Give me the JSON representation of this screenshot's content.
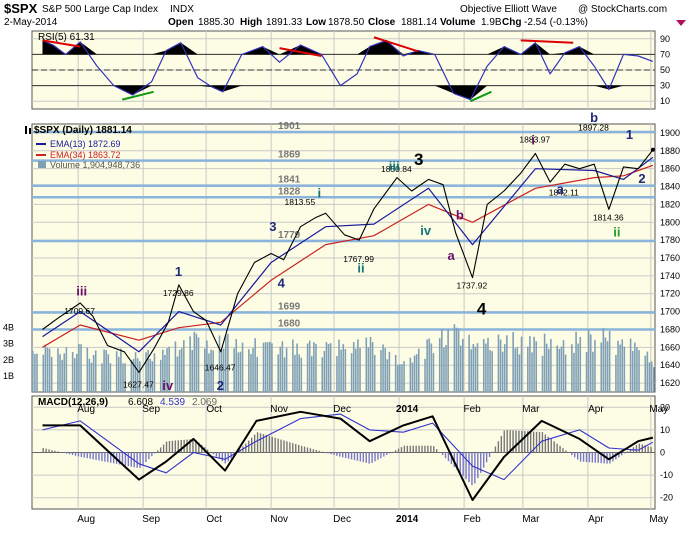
{
  "header": {
    "symbol": "$SPX",
    "description": "S&P 500 Large Cap Index",
    "exchange": "INDX",
    "date": "2-May-2014",
    "open_label": "Open",
    "open": "1885.30",
    "high_label": "High",
    "high": "1891.33",
    "low_label": "Low",
    "low": "1878.50",
    "close_label": "Close",
    "close": "1881.14",
    "volume_label": "Volume",
    "volume": "1.9B",
    "chg_label": "Chg",
    "chg": "-2.54 (-0.13%)",
    "watermark": "Objective Elliott Wave",
    "copyright": "@ StockCharts.com"
  },
  "colors": {
    "panel_bg": "#fdfde6",
    "grid": "#c8c8c8",
    "price_line": "#000000",
    "ema13": "#1a1a9c",
    "ema34": "#cc2222",
    "volume": "#7e9fb5",
    "rsi_line": "#3333bb",
    "rsi_fill": "#000000",
    "level_band": "#8ab4dc",
    "macd_line": "#000000",
    "signal_line": "#3333cc",
    "histogram": "#777777",
    "divergence_red": "#dd0000",
    "divergence_green": "#119911",
    "wave_purple": "#6b106b",
    "wave_navy": "#1f2a7a",
    "wave_teal": "#117777",
    "wave_green": "#229922"
  },
  "chart_data": [
    {
      "type": "line",
      "panel": "rsi",
      "title": "RSI(5) 61.31",
      "ylim": [
        0,
        100
      ],
      "ticks": [
        10,
        30,
        50,
        70,
        90
      ],
      "reference_lines": [
        30,
        50,
        70
      ],
      "series": [
        {
          "name": "RSI(5)",
          "x": [
            "2013-07-15",
            "2013-07-20",
            "2013-07-26",
            "2013-08-02",
            "2013-08-10",
            "2013-08-18",
            "2013-08-27",
            "2013-09-05",
            "2013-09-12",
            "2013-09-19",
            "2013-09-27",
            "2013-10-04",
            "2013-10-09",
            "2013-10-18",
            "2013-10-28",
            "2013-11-05",
            "2013-11-15",
            "2013-11-25",
            "2013-12-04",
            "2013-12-12",
            "2013-12-18",
            "2013-12-26",
            "2014-01-03",
            "2014-01-10",
            "2014-01-18",
            "2014-01-27",
            "2014-02-04",
            "2014-02-12",
            "2014-02-20",
            "2014-02-28",
            "2014-03-07",
            "2014-03-14",
            "2014-03-21",
            "2014-03-28",
            "2014-04-04",
            "2014-04-11",
            "2014-04-18",
            "2014-04-25",
            "2014-05-02"
          ],
          "values": [
            88,
            82,
            70,
            86,
            55,
            30,
            18,
            35,
            75,
            85,
            40,
            28,
            22,
            70,
            80,
            60,
            82,
            70,
            30,
            45,
            80,
            88,
            68,
            75,
            70,
            20,
            12,
            55,
            80,
            70,
            85,
            45,
            72,
            80,
            55,
            25,
            70,
            68,
            61
          ]
        }
      ]
    },
    {
      "type": "line",
      "panel": "price",
      "title": "$SPX (Daily) 1881.14",
      "ylim": [
        1610,
        1910
      ],
      "ticks": [
        1620,
        1640,
        1660,
        1680,
        1700,
        1720,
        1740,
        1760,
        1780,
        1800,
        1820,
        1840,
        1860,
        1880,
        1900
      ],
      "series": [
        {
          "name": "$SPX (Daily) 1881.14",
          "x": [
            "2013-07-15",
            "2013-07-22",
            "2013-08-02",
            "2013-08-08",
            "2013-08-15",
            "2013-08-23",
            "2013-08-30",
            "2013-09-06",
            "2013-09-13",
            "2013-09-18",
            "2013-09-25",
            "2013-10-01",
            "2013-10-08",
            "2013-10-16",
            "2013-10-24",
            "2013-11-01",
            "2013-11-07",
            "2013-11-15",
            "2013-11-22",
            "2013-11-27",
            "2013-12-06",
            "2013-12-13",
            "2013-12-20",
            "2013-12-31",
            "2014-01-07",
            "2014-01-15",
            "2014-01-22",
            "2014-01-28",
            "2014-02-05",
            "2014-02-12",
            "2014-02-20",
            "2014-02-28",
            "2014-03-07",
            "2014-03-14",
            "2014-03-21",
            "2014-03-28",
            "2014-04-04",
            "2014-04-11",
            "2014-04-18",
            "2014-04-25",
            "2014-05-02"
          ],
          "values": [
            1680,
            1692,
            1709.67,
            1695,
            1662,
            1655,
            1632,
            1658,
            1688,
            1729.86,
            1700,
            1690,
            1655,
            1720,
            1755,
            1765,
            1758,
            1795,
            1805,
            1810,
            1786,
            1780,
            1815,
            1850,
            1835,
            1848,
            1842,
            1788,
            1737.92,
            1820,
            1835,
            1855,
            1877,
            1845,
            1865,
            1860,
            1865,
            1814.36,
            1862,
            1860,
            1881.14
          ]
        },
        {
          "name": "EMA(13) 1872.69",
          "x": [
            "2013-07-15",
            "2013-08-02",
            "2013-08-30",
            "2013-09-18",
            "2013-10-08",
            "2013-11-01",
            "2013-11-27",
            "2013-12-20",
            "2014-01-15",
            "2014-02-05",
            "2014-03-07",
            "2014-04-04",
            "2014-04-18",
            "2014-05-02"
          ],
          "values": [
            1672,
            1700,
            1655,
            1700,
            1685,
            1755,
            1795,
            1798,
            1838,
            1775,
            1860,
            1858,
            1848,
            1872.69
          ]
        },
        {
          "name": "EMA(34) 1863.72",
          "x": [
            "2013-07-15",
            "2013-08-02",
            "2013-08-30",
            "2013-09-18",
            "2013-10-08",
            "2013-11-01",
            "2013-11-27",
            "2013-12-20",
            "2014-01-15",
            "2014-02-05",
            "2014-03-07",
            "2014-04-04",
            "2014-04-18",
            "2014-05-02"
          ],
          "values": [
            1660,
            1685,
            1668,
            1682,
            1688,
            1735,
            1775,
            1785,
            1820,
            1800,
            1838,
            1850,
            1852,
            1863.72
          ]
        }
      ],
      "horizontal_levels": [
        "1901",
        "1869",
        "1841",
        "1828",
        "1779",
        "1699",
        "1680"
      ],
      "annotations": [
        {
          "x": "2013-08-02",
          "y": 1709.67,
          "text": "1709.67"
        },
        {
          "x": "2013-09-18",
          "y": 1729.86,
          "text": "1729.86"
        },
        {
          "x": "2013-08-30",
          "y": 1627.47,
          "text": "1627.47"
        },
        {
          "x": "2013-10-08",
          "y": 1646.47,
          "text": "1646.47"
        },
        {
          "x": "2013-11-15",
          "y": 1813.55,
          "text": "1813.55"
        },
        {
          "x": "2013-12-13",
          "y": 1767.99,
          "text": "1767.99"
        },
        {
          "x": "2013-12-31",
          "y": 1850.84,
          "text": "1850.84"
        },
        {
          "x": "2014-02-05",
          "y": 1737.92,
          "text": "1737.92"
        },
        {
          "x": "2014-03-07",
          "y": 1883.97,
          "text": "1883.97"
        },
        {
          "x": "2014-03-21",
          "y": 1842.11,
          "text": "1842.11"
        },
        {
          "x": "2014-04-04",
          "y": 1897.28,
          "text": "1897.28"
        },
        {
          "x": "2014-04-11",
          "y": 1814.36,
          "text": "1814.36"
        }
      ],
      "wave_labels": [
        {
          "text": "iii",
          "x": "2013-08-02",
          "y": 1718,
          "color": "wave_purple"
        },
        {
          "text": "1",
          "x": "2013-09-18",
          "y": 1740,
          "color": "wave_navy"
        },
        {
          "text": "iv",
          "x": "2013-09-12",
          "y": 1612,
          "color": "wave_purple"
        },
        {
          "text": "2",
          "x": "2013-10-08",
          "y": 1612,
          "color": "wave_navy"
        },
        {
          "text": "3",
          "x": "2013-11-02",
          "y": 1790,
          "color": "wave_navy"
        },
        {
          "text": "4",
          "x": "2013-11-06",
          "y": 1727,
          "color": "wave_navy"
        },
        {
          "text": "i",
          "x": "2013-11-25",
          "y": 1828,
          "color": "wave_teal"
        },
        {
          "text": "ii",
          "x": "2013-12-14",
          "y": 1744,
          "color": "wave_teal"
        },
        {
          "text": "iii",
          "x": "2013-12-29",
          "y": 1858,
          "color": "wave_teal"
        },
        {
          "text": "3",
          "x": "2014-01-10",
          "y": 1864,
          "color": "wave_black"
        },
        {
          "text": "iv",
          "x": "2014-01-13",
          "y": 1786,
          "color": "wave_teal"
        },
        {
          "text": "a",
          "x": "2014-01-26",
          "y": 1758,
          "color": "wave_purple"
        },
        {
          "text": "b",
          "x": "2014-01-30",
          "y": 1803,
          "color": "wave_purple"
        },
        {
          "text": "4",
          "x": "2014-02-09",
          "y": 1697,
          "color": "wave_black"
        },
        {
          "text": "i",
          "x": "2014-03-07",
          "y": 1887,
          "color": "wave_purple"
        },
        {
          "text": "a",
          "x": "2014-03-19",
          "y": 1832,
          "color": "wave_navy"
        },
        {
          "text": "b",
          "x": "2014-04-04",
          "y": 1912,
          "color": "wave_navy"
        },
        {
          "text": "ii",
          "x": "2014-04-15",
          "y": 1784,
          "color": "wave_green"
        },
        {
          "text": "1",
          "x": "2014-04-21",
          "y": 1893,
          "color": "wave_navy"
        },
        {
          "text": "2",
          "x": "2014-04-27",
          "y": 1844,
          "color": "wave_navy"
        }
      ]
    },
    {
      "type": "bar",
      "panel": "volume",
      "title": "Volume 1,904,948,736",
      "ticks": [
        "1B",
        "2B",
        "3B",
        "4B"
      ],
      "x": [
        "2013-07-15",
        "2013-07-29",
        "2013-08-12",
        "2013-08-26",
        "2013-09-09",
        "2013-09-23",
        "2013-10-07",
        "2013-10-21",
        "2013-11-04",
        "2013-11-18",
        "2013-12-02",
        "2013-12-16",
        "2013-12-30",
        "2014-01-13",
        "2014-01-27",
        "2014-02-10",
        "2014-02-24",
        "2014-03-10",
        "2014-03-24",
        "2014-04-07",
        "2014-04-21",
        "2014-05-02"
      ],
      "values": [
        2.6,
        2.5,
        2.3,
        2.2,
        2.4,
        3.0,
        3.1,
        2.8,
        2.6,
        2.8,
        2.7,
        2.9,
        2.0,
        2.7,
        3.6,
        2.9,
        3.0,
        2.9,
        3.1,
        3.3,
        2.8,
        1.9
      ]
    },
    {
      "type": "line",
      "panel": "macd",
      "title": "MACD(12,26,9)",
      "values_label": [
        "6.608",
        "4.539",
        "2.069"
      ],
      "ylim": [
        -25,
        25
      ],
      "ticks": [
        -20,
        -10,
        0,
        10,
        20
      ],
      "series": [
        {
          "name": "MACD",
          "x": [
            "2013-07-15",
            "2013-08-02",
            "2013-08-30",
            "2013-09-12",
            "2013-09-25",
            "2013-10-10",
            "2013-10-25",
            "2013-11-15",
            "2013-12-04",
            "2013-12-18",
            "2014-01-03",
            "2014-01-17",
            "2014-02-05",
            "2014-02-20",
            "2014-03-10",
            "2014-03-28",
            "2014-04-11",
            "2014-04-25",
            "2014-05-02"
          ],
          "values": [
            12,
            12,
            -12,
            -4,
            6,
            -8,
            14,
            18,
            15,
            5,
            12,
            16,
            -21,
            -2,
            14,
            6,
            -3,
            5,
            6.608
          ]
        },
        {
          "name": "Signal",
          "x": [
            "2013-07-15",
            "2013-08-02",
            "2013-08-30",
            "2013-09-12",
            "2013-09-25",
            "2013-10-10",
            "2013-10-25",
            "2013-11-15",
            "2013-12-04",
            "2013-12-18",
            "2014-01-03",
            "2014-01-17",
            "2014-02-05",
            "2014-02-20",
            "2014-03-10",
            "2014-03-28",
            "2014-04-11",
            "2014-04-25",
            "2014-05-02"
          ],
          "values": [
            10,
            14,
            -5,
            -9,
            0,
            -3,
            5,
            15,
            17,
            10,
            9,
            13,
            -6,
            -12,
            5,
            10,
            2,
            1,
            4.539
          ]
        },
        {
          "name": "Histogram",
          "x": [
            "2013-07-15",
            "2013-08-02",
            "2013-08-30",
            "2013-09-12",
            "2013-09-25",
            "2013-10-10",
            "2013-10-25",
            "2013-11-15",
            "2013-12-04",
            "2013-12-18",
            "2014-01-03",
            "2014-01-17",
            "2014-02-05",
            "2014-02-20",
            "2014-03-10",
            "2014-03-28",
            "2014-04-11",
            "2014-04-25",
            "2014-05-02"
          ],
          "values": [
            2,
            -2,
            -7,
            5,
            6,
            -5,
            9,
            3,
            -2,
            -5,
            3,
            3,
            -15,
            10,
            9,
            -4,
            -5,
            4,
            2.069
          ]
        }
      ]
    }
  ],
  "x_axis": {
    "ticks": [
      {
        "date": "2013-08-01",
        "label": "Aug"
      },
      {
        "date": "2013-09-01",
        "label": "Sep"
      },
      {
        "date": "2013-10-01",
        "label": "Oct"
      },
      {
        "date": "2013-11-01",
        "label": "Nov"
      },
      {
        "date": "2013-12-01",
        "label": "Dec"
      },
      {
        "date": "2014-01-01",
        "label": "2014",
        "bold": true
      },
      {
        "date": "2014-02-01",
        "label": "Feb"
      },
      {
        "date": "2014-03-01",
        "label": "Mar"
      },
      {
        "date": "2014-04-01",
        "label": "Apr"
      },
      {
        "date": "2014-05-01",
        "label": "May"
      }
    ]
  }
}
